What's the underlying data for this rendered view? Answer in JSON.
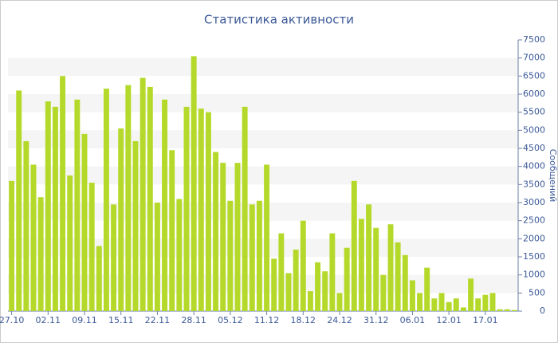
{
  "chart_data": {
    "type": "bar",
    "title": "Статистика активности",
    "y_label": "Сообщений",
    "categories": [
      "27.10",
      null,
      null,
      null,
      null,
      "02.11",
      null,
      null,
      null,
      null,
      "09.11",
      null,
      null,
      null,
      null,
      "15.11",
      null,
      null,
      null,
      null,
      "22.11",
      null,
      null,
      null,
      null,
      "28.11",
      null,
      null,
      null,
      null,
      "05.12",
      null,
      null,
      null,
      null,
      "11.12",
      null,
      null,
      null,
      null,
      "18.12",
      null,
      null,
      null,
      null,
      "24.12",
      null,
      null,
      null,
      null,
      "31.12",
      null,
      null,
      null,
      null,
      "06.01",
      null,
      null,
      null,
      null,
      "12.01",
      null,
      null,
      null,
      null,
      "17.01",
      null,
      null,
      null,
      null
    ],
    "values": [
      3600,
      6100,
      4700,
      4050,
      3150,
      5800,
      5650,
      6500,
      3750,
      5850,
      4900,
      3550,
      1800,
      6150,
      2950,
      5050,
      6250,
      4700,
      6450,
      6200,
      3000,
      5850,
      4450,
      3100,
      5650,
      7050,
      5600,
      5500,
      4400,
      4100,
      3050,
      4100,
      5650,
      2950,
      3050,
      4050,
      1450,
      2150,
      1050,
      1700,
      2500,
      550,
      1350,
      1100,
      2150,
      500,
      1750,
      3600,
      2550,
      2950,
      2300,
      1000,
      2400,
      1900,
      1550,
      850,
      500,
      1200,
      350,
      500,
      250,
      350,
      100,
      900,
      350,
      450,
      500,
      50,
      50,
      30
    ],
    "color": "#b5d92a",
    "ylim": [
      0,
      7500
    ],
    "yticks": [
      0,
      500,
      1000,
      1500,
      2000,
      2500,
      3000,
      3500,
      4000,
      4500,
      5000,
      5500,
      6000,
      6500,
      7000,
      7500
    ],
    "grid": true,
    "y_axis_side": "right"
  }
}
